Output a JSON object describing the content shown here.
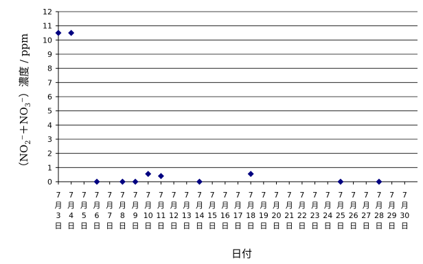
{
  "chart_data": {
    "type": "scatter",
    "title": "",
    "xlabel": "日付",
    "ylabel": {
      "prefix": "（NO",
      "sub1": "2",
      "mid": "⁻＋NO",
      "sub2": "3",
      "suffix": "⁻）濃度 / ppm"
    },
    "ylim": [
      0,
      12
    ],
    "yticks": [
      "0",
      "1",
      "2",
      "3",
      "4",
      "5",
      "6",
      "7",
      "8",
      "9",
      "10",
      "11",
      "12"
    ],
    "categories": [
      3,
      4,
      5,
      6,
      7,
      8,
      9,
      10,
      11,
      12,
      13,
      14,
      15,
      16,
      17,
      18,
      19,
      20,
      21,
      22,
      23,
      24,
      25,
      26,
      27,
      28,
      29,
      30
    ],
    "category_label_parts": [
      "7",
      "月",
      "日"
    ],
    "grid": true,
    "marker": "diamond",
    "marker_color": "#000080",
    "series": [
      {
        "points": [
          {
            "x": 3,
            "y": 10.5
          },
          {
            "x": 4,
            "y": 10.5
          },
          {
            "x": 6,
            "y": 0
          },
          {
            "x": 8,
            "y": 0
          },
          {
            "x": 9,
            "y": 0
          },
          {
            "x": 10,
            "y": 0.55
          },
          {
            "x": 11,
            "y": 0.4
          },
          {
            "x": 14,
            "y": 0
          },
          {
            "x": 18,
            "y": 0.55
          },
          {
            "x": 25,
            "y": 0
          },
          {
            "x": 28,
            "y": 0
          }
        ]
      }
    ]
  }
}
